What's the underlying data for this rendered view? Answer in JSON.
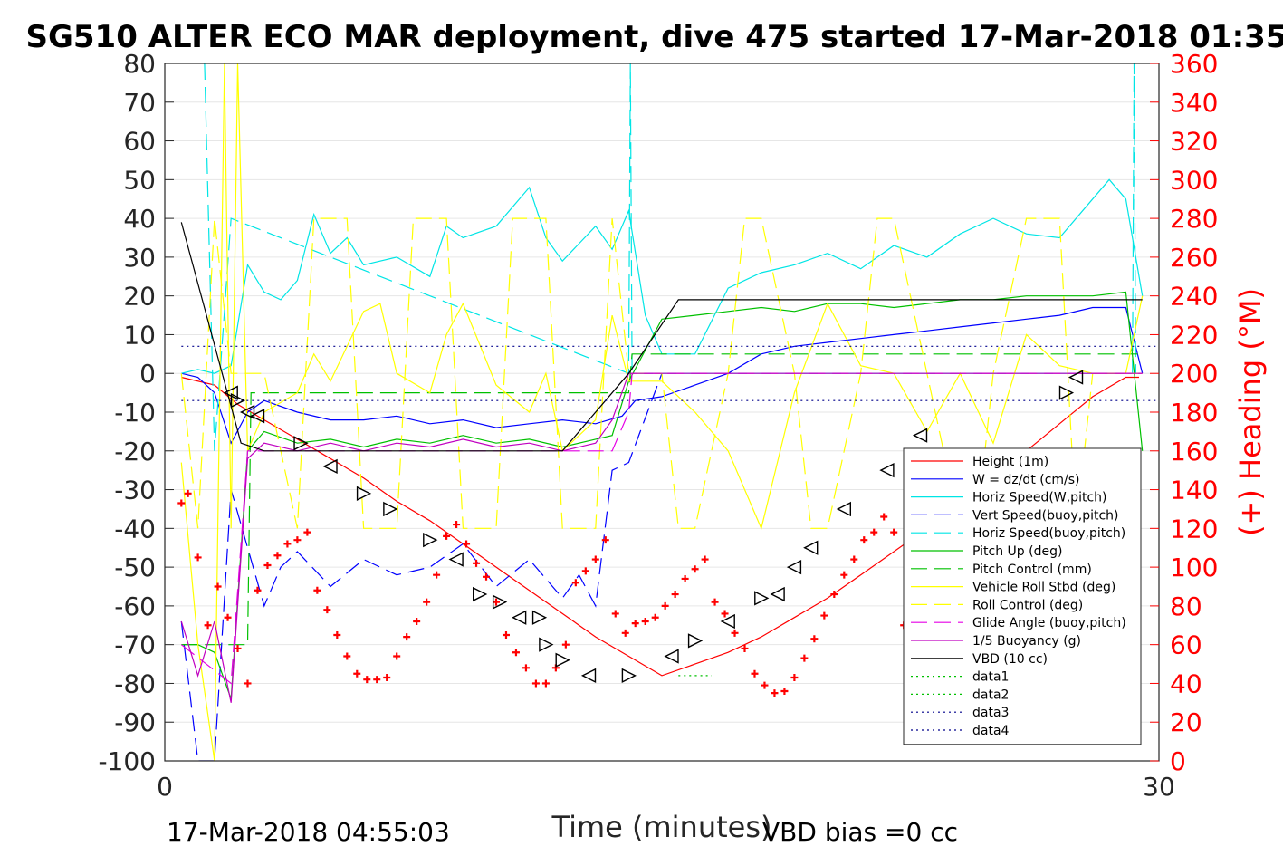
{
  "chart_data": {
    "type": "line",
    "title": "SG510 ALTER ECO MAR deployment, dive 475 started 17-Mar-2018 01:35",
    "xlabel": "Time (minutes)",
    "ylabel_right": "(+) Heading (°M)",
    "xlim": [
      0,
      30
    ],
    "ylim_left": [
      -100,
      80
    ],
    "ylim_right": [
      0,
      360
    ],
    "x_ticks": [
      "0",
      "30"
    ],
    "y_ticks_left": [
      "80",
      "70",
      "60",
      "50",
      "40",
      "30",
      "20",
      "10",
      "0",
      "-10",
      "-20",
      "-30",
      "-40",
      "-50",
      "-60",
      "-70",
      "-80",
      "-90",
      "-100"
    ],
    "y_ticks_right": [
      "360",
      "340",
      "320",
      "300",
      "280",
      "260",
      "240",
      "220",
      "200",
      "180",
      "160",
      "140",
      "120",
      "100",
      "80",
      "60",
      "40",
      "20",
      "0"
    ],
    "grid": true,
    "legend_position": "bottom-right",
    "footer_left": "17-Mar-2018 04:55:03",
    "footer_right": "VBD bias =0 cc",
    "series": [
      {
        "name": "Height (1m)",
        "color": "#ff0000",
        "style": "solid",
        "x": [
          0.5,
          1.5,
          2.2,
          3.0,
          4.0,
          5.0,
          6.0,
          7.0,
          8.0,
          9.0,
          10.0,
          11.0,
          12.0,
          13.0,
          14.0,
          15.0,
          16.0,
          17.0,
          18.0,
          19.0,
          20.0,
          21.0,
          22.0,
          23.0,
          24.0,
          25.0,
          26.0,
          27.0,
          28.0,
          29.0,
          29.4
        ],
        "y": [
          -1,
          -3,
          -8,
          -12,
          -17,
          -22,
          -27,
          -33,
          -38,
          -44,
          -50,
          -56,
          -62,
          -68,
          -73,
          -78,
          -75,
          -72,
          -68,
          -63,
          -58,
          -52,
          -46,
          -40,
          -34,
          -27,
          -20,
          -13,
          -6,
          -1,
          -1
        ]
      },
      {
        "name": "W = dz/dt (cm/s)",
        "color": "#0000ff",
        "style": "solid",
        "x": [
          0.5,
          1.0,
          1.5,
          2.0,
          2.5,
          3.0,
          4.0,
          5.0,
          6.0,
          7.0,
          8.0,
          9.0,
          10.0,
          11.0,
          12.0,
          13.0,
          13.8,
          14.2,
          15.0,
          16.0,
          17.0,
          18.0,
          19.0,
          20.0,
          21.0,
          22.0,
          23.0,
          24.0,
          25.0,
          26.0,
          27.0,
          28.0,
          29.0,
          29.5
        ],
        "y": [
          0,
          -1,
          -5,
          -18,
          -10,
          -7,
          -10,
          -12,
          -12,
          -11,
          -13,
          -12,
          -14,
          -13,
          -12,
          -13,
          -11,
          -7,
          -6,
          -3,
          0,
          5,
          7,
          8,
          9,
          10,
          11,
          12,
          13,
          14,
          15,
          17,
          17,
          0
        ]
      },
      {
        "name": "Horiz Speed(W,pitch)",
        "color": "#00e5e5",
        "style": "solid",
        "x": [
          0.5,
          1.0,
          1.5,
          2.0,
          2.5,
          3.0,
          3.5,
          4.0,
          4.5,
          5.0,
          5.5,
          6.0,
          7.0,
          8.0,
          8.5,
          9.0,
          10.0,
          11.0,
          11.5,
          12.0,
          13.0,
          13.5,
          14.0,
          14.5,
          15.0,
          16.0,
          17.0,
          18.0,
          19.0,
          20.0,
          21.0,
          22.0,
          23.0,
          24.0,
          25.0,
          26.0,
          27.0,
          28.0,
          28.5,
          29.0,
          29.5
        ],
        "y": [
          0,
          1,
          0,
          2,
          28,
          21,
          19,
          24,
          41,
          31,
          35,
          28,
          30,
          25,
          38,
          35,
          38,
          48,
          35,
          29,
          38,
          32,
          42,
          15,
          5,
          5,
          22,
          26,
          28,
          31,
          27,
          33,
          30,
          36,
          40,
          36,
          35,
          45,
          50,
          45,
          20
        ]
      },
      {
        "name": "Vert Speed(buoy,pitch)",
        "color": "#0000ff",
        "style": "dashed",
        "x": [
          0.5,
          1.0,
          1.5,
          2.0,
          2.5,
          3.0,
          3.5,
          4.0,
          5.0,
          6.0,
          7.0,
          8.0,
          9.0,
          10.0,
          11.0,
          12.0,
          12.5,
          13.0,
          13.5,
          14.0,
          15.0
        ],
        "y": [
          -64,
          -100,
          -100,
          -30,
          -45,
          -60,
          -50,
          -46,
          -55,
          -48,
          -52,
          -50,
          -44,
          -55,
          -48,
          -58,
          -52,
          -60,
          -25,
          -23,
          0
        ]
      },
      {
        "name": "Horiz Speed(buoy,pitch)",
        "color": "#00e5e5",
        "style": "dashed",
        "x": [
          1.2,
          1.5,
          2.0,
          14.0,
          14.05,
          14.1,
          27.0,
          28.0,
          29.2,
          29.25,
          29.3
        ],
        "y": [
          80,
          -20,
          40,
          0,
          80,
          0,
          0,
          0,
          0,
          80,
          0
        ]
      },
      {
        "name": "Pitch Up (deg)",
        "color": "#00c000",
        "style": "solid",
        "x": [
          0.5,
          1.0,
          1.5,
          2.0,
          2.5,
          3.0,
          4.0,
          5.0,
          6.0,
          7.0,
          8.0,
          9.0,
          10.0,
          11.0,
          12.0,
          13.0,
          13.5,
          14.0,
          15.0,
          16.0,
          17.0,
          18.0,
          19.0,
          20.0,
          21.0,
          22.0,
          23.0,
          24.0,
          25.0,
          26.0,
          27.0,
          28.0,
          29.0,
          29.5
        ],
        "y": [
          -70,
          -70,
          -72,
          -84,
          -20,
          -15,
          -18,
          -17,
          -19,
          -17,
          -18,
          -16,
          -18,
          -17,
          -19,
          -17,
          -16,
          -2,
          14,
          15,
          16,
          17,
          16,
          18,
          18,
          17,
          18,
          19,
          19,
          20,
          20,
          20,
          21,
          -20
        ]
      },
      {
        "name": "Pitch Control (mm)",
        "color": "#00c000",
        "style": "dashed",
        "x": [
          0.5,
          2.5,
          2.6,
          14.0,
          14.1,
          29.5
        ],
        "y": [
          -70,
          -70,
          -5,
          -5,
          5,
          5
        ]
      },
      {
        "name": "Vehicle Roll Stbd (deg)",
        "color": "#ffff00",
        "style": "solid",
        "x": [
          0.5,
          1.0,
          1.5,
          1.8,
          2.0,
          2.2,
          2.5,
          3.0,
          4.0,
          4.5,
          5.0,
          6.0,
          6.5,
          7.0,
          8.0,
          8.5,
          9.0,
          10.0,
          11.0,
          11.5,
          12.0,
          13.0,
          13.5,
          14.0,
          15.0,
          16.0,
          17.0,
          18.0,
          19.0,
          20.0,
          21.0,
          22.0,
          23.0,
          24.0,
          25.0,
          26.0,
          27.0,
          28.0,
          29.0,
          29.5
        ],
        "y": [
          -23,
          -70,
          -100,
          80,
          -40,
          80,
          -20,
          -10,
          -5,
          5,
          -2,
          16,
          18,
          0,
          -5,
          10,
          18,
          -3,
          -10,
          0,
          -20,
          -12,
          15,
          -2,
          -2,
          -10,
          -20,
          -40,
          -5,
          18,
          2,
          0,
          -15,
          0,
          -18,
          10,
          2,
          0,
          0,
          20
        ]
      },
      {
        "name": "Roll Control (deg)",
        "color": "#ffff00",
        "style": "dashed",
        "x": [
          0.5,
          1.0,
          1.5,
          2.0,
          3.0,
          4.0,
          4.5,
          5.5,
          6.0,
          7.0,
          7.5,
          8.5,
          9.0,
          10.0,
          10.5,
          11.5,
          12.0,
          13.0,
          13.5,
          14.0,
          15.0,
          15.5,
          16.0,
          17.0,
          17.5,
          18.0,
          19.0,
          19.5,
          20.0,
          21.0,
          21.5,
          22.0,
          23.0,
          24.0,
          24.5,
          25.0,
          26.0,
          27.0,
          27.5,
          28.0,
          29.5
        ],
        "y": [
          0,
          -40,
          40,
          0,
          0,
          -40,
          40,
          40,
          -40,
          -40,
          40,
          40,
          -40,
          -40,
          40,
          40,
          -40,
          -40,
          40,
          0,
          0,
          -40,
          -40,
          0,
          40,
          40,
          0,
          -40,
          -40,
          0,
          40,
          40,
          0,
          -40,
          -40,
          0,
          40,
          40,
          -40,
          0,
          0
        ]
      },
      {
        "name": "Glide Angle (buoy,pitch)",
        "color": "#e500e5",
        "style": "dashed",
        "x": [
          0.5,
          2.0,
          2.5,
          13.5,
          14.0,
          14.1,
          29.5
        ],
        "y": [
          -70,
          -80,
          -20,
          -20,
          -10,
          0,
          0
        ]
      },
      {
        "name": "1/5 Buoyancy (g)",
        "color": "#c000c0",
        "style": "solid",
        "x": [
          0.5,
          1.0,
          1.5,
          2.0,
          2.5,
          3.0,
          4.0,
          5.0,
          6.0,
          7.0,
          8.0,
          9.0,
          10.0,
          11.0,
          12.0,
          13.0,
          13.5,
          14.0,
          29.5
        ],
        "y": [
          -64,
          -78,
          -64,
          -85,
          -22,
          -18,
          -20,
          -18,
          -20,
          -18,
          -19,
          -17,
          -19,
          -18,
          -20,
          -18,
          -12,
          0,
          0
        ]
      },
      {
        "name": "VBD (10 cc)",
        "color": "#000000",
        "style": "solid",
        "x": [
          0.5,
          2.3,
          3.0,
          12.0,
          14.0,
          15.5,
          16.0,
          29.5
        ],
        "y": [
          39,
          -18,
          -20,
          -20,
          0,
          19,
          19,
          19
        ]
      },
      {
        "name": "data1",
        "color": "#00c000",
        "style": "dotted",
        "x": [
          15.5,
          16.0
        ],
        "y": [
          -78,
          -78
        ]
      },
      {
        "name": "data2",
        "color": "#00c000",
        "style": "dotted",
        "x": [
          16.0,
          16.5
        ],
        "y": [
          -78,
          -78
        ]
      },
      {
        "name": "data3",
        "color": "#00008b",
        "style": "dotted",
        "x": [
          0.5,
          30
        ],
        "y": [
          7,
          7
        ]
      },
      {
        "name": "data4",
        "color": "#00008b",
        "style": "dotted",
        "x": [
          0.5,
          30
        ],
        "y": [
          -7,
          -7
        ]
      }
    ],
    "heading_markers": {
      "color": "#ff0000",
      "x": [
        0.5,
        0.7,
        1.0,
        1.3,
        1.6,
        1.9,
        2.2,
        2.5,
        2.8,
        3.1,
        3.4,
        3.7,
        4.0,
        4.3,
        4.6,
        4.9,
        5.2,
        5.5,
        5.8,
        6.1,
        6.4,
        6.7,
        7.0,
        7.3,
        7.6,
        7.9,
        8.2,
        8.5,
        8.8,
        9.1,
        9.4,
        9.7,
        10.0,
        10.3,
        10.6,
        10.9,
        11.2,
        11.5,
        11.8,
        12.1,
        12.4,
        12.7,
        13.0,
        13.3,
        13.6,
        13.9,
        14.2,
        14.5,
        14.8,
        15.1,
        15.4,
        15.7,
        16.0,
        16.3,
        16.6,
        16.9,
        17.2,
        17.5,
        17.8,
        18.1,
        18.4,
        18.7,
        19.0,
        19.3,
        19.6,
        19.9,
        20.2,
        20.5,
        20.8,
        21.1,
        21.4,
        21.7,
        22.0,
        22.3,
        22.6,
        22.9,
        23.2,
        23.5,
        23.8,
        24.1,
        24.4,
        24.7,
        25.0,
        25.3,
        25.6,
        25.9,
        26.2,
        26.5,
        26.8
      ],
      "y": [
        133,
        138,
        105,
        70,
        90,
        74,
        58,
        40,
        88,
        101,
        106,
        112,
        114,
        118,
        88,
        78,
        65,
        54,
        45,
        42,
        42,
        43,
        54,
        64,
        72,
        82,
        96,
        116,
        122,
        112,
        102,
        95,
        82,
        65,
        56,
        48,
        40,
        40,
        48,
        60,
        92,
        98,
        104,
        114,
        76,
        66,
        71,
        72,
        74,
        80,
        86,
        94,
        99,
        104,
        82,
        76,
        66,
        58,
        45,
        39,
        35,
        36,
        43,
        53,
        63,
        75,
        86,
        96,
        104,
        114,
        118,
        126,
        118,
        70,
        52,
        38,
        34,
        37,
        30,
        29,
        35,
        43,
        52,
        64,
        72,
        66,
        70,
        76,
        82
      ]
    },
    "triangle_markers": {
      "x": [
        2.0,
        2.2,
        2.5,
        2.8,
        4.1,
        5.0,
        6.0,
        6.8,
        8.0,
        8.8,
        9.5,
        10.1,
        10.7,
        11.3,
        11.5,
        12.0,
        12.8,
        14.0,
        15.3,
        16.0,
        17.0,
        18.0,
        18.5,
        19.0,
        19.5,
        20.5,
        21.8,
        22.8,
        27.2,
        27.5
      ],
      "y": [
        -5,
        -7,
        -10,
        -11,
        -18,
        -24,
        -31,
        -35,
        -43,
        -48,
        -57,
        -59,
        -63,
        -63,
        -70,
        -74,
        -78,
        -78,
        -73,
        -69,
        -64,
        -58,
        -57,
        -50,
        -45,
        -35,
        -25,
        -16,
        -5,
        -1
      ],
      "up": [
        false,
        true,
        false,
        false,
        true,
        false,
        true,
        true,
        true,
        false,
        true,
        true,
        false,
        true,
        true,
        true,
        false,
        true,
        false,
        true,
        false,
        true,
        false,
        false,
        false,
        false,
        false,
        false,
        true,
        false
      ]
    }
  }
}
